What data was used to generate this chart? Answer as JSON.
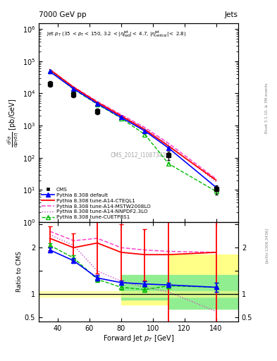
{
  "title_left": "7000 GeV pp",
  "title_right": "Jets",
  "watermark": "CMS_2012_I1087342",
  "cms_x": [
    35,
    50,
    65,
    110,
    140
  ],
  "cms_y": [
    20000.0,
    9500,
    2800,
    120,
    10.5
  ],
  "cms_yerr_lo": [
    4000,
    1800,
    600,
    35,
    3.5
  ],
  "cms_yerr_hi": [
    4000,
    1800,
    600,
    35,
    3.5
  ],
  "pythia_default_x": [
    35,
    50,
    65,
    80,
    95,
    110,
    140
  ],
  "pythia_default_y": [
    48000.0,
    14000.0,
    4800,
    1800,
    680,
    200,
    12
  ],
  "pythia_a14cteq_x": [
    35,
    50,
    65,
    80,
    95,
    110,
    140
  ],
  "pythia_a14cteq_y": [
    55000.0,
    15500.0,
    5300,
    2000,
    750,
    230,
    20
  ],
  "pythia_a14mstw_x": [
    35,
    50,
    65,
    80,
    95,
    110,
    140
  ],
  "pythia_a14mstw_y": [
    56000.0,
    16000.0,
    5600,
    2200,
    870,
    280,
    22
  ],
  "pythia_a14nnpdf_x": [
    35,
    50,
    65,
    80,
    95,
    110,
    140
  ],
  "pythia_a14nnpdf_y": [
    54000.0,
    15500.0,
    5300,
    2100,
    800,
    250,
    18
  ],
  "pythia_cuetp_x": [
    35,
    50,
    65,
    80,
    95,
    110,
    140
  ],
  "pythia_cuetp_y": [
    50000.0,
    13500.0,
    4600,
    1700,
    530,
    65,
    9
  ],
  "ratio_default_x": [
    35,
    50,
    65,
    80,
    95,
    110,
    140
  ],
  "ratio_default_y": [
    1.95,
    1.72,
    1.35,
    1.25,
    1.22,
    1.2,
    1.15
  ],
  "ratio_default_yerr_lo": [
    0.05,
    0.05,
    0.06,
    0.05,
    0.05,
    0.05,
    0.1
  ],
  "ratio_default_yerr_hi": [
    0.05,
    0.05,
    0.06,
    0.05,
    0.05,
    0.05,
    0.1
  ],
  "ratio_a14cteq_x": [
    35,
    50,
    65,
    80,
    95,
    110,
    140
  ],
  "ratio_a14cteq_y": [
    2.2,
    2.0,
    2.1,
    1.9,
    1.85,
    1.85,
    1.9
  ],
  "ratio_a14cteq_yerr_lo": [
    0.25,
    0.3,
    0.65,
    0.6,
    0.55,
    1.5,
    15.0
  ],
  "ratio_a14cteq_yerr_hi": [
    0.25,
    0.3,
    0.65,
    0.6,
    0.55,
    1.5,
    15.0
  ],
  "ratio_a14mstw_x": [
    35,
    50,
    65,
    80,
    95,
    110,
    140
  ],
  "ratio_a14mstw_y": [
    2.35,
    2.15,
    2.2,
    2.0,
    1.95,
    1.92,
    1.9
  ],
  "ratio_a14nnpdf_x": [
    35,
    50,
    65,
    80,
    95,
    110,
    140
  ],
  "ratio_a14nnpdf_y": [
    2.28,
    2.05,
    1.5,
    1.28,
    1.15,
    1.05,
    0.63
  ],
  "ratio_cuetp_x": [
    35,
    50,
    65,
    80,
    95,
    110,
    140
  ],
  "ratio_cuetp_y": [
    2.05,
    1.78,
    1.32,
    1.15,
    1.1,
    1.18,
    1.15
  ],
  "ratio_cuetp_yerr_lo": [
    0.05,
    0.05,
    0.06,
    0.05,
    0.05,
    0.05,
    0.1
  ],
  "ratio_cuetp_yerr_hi": [
    0.05,
    0.05,
    0.06,
    0.05,
    0.05,
    0.05,
    0.1
  ],
  "color_cms": "#000000",
  "color_default": "#0000ff",
  "color_a14cteq": "#ff0000",
  "color_a14mstw": "#ff44cc",
  "color_a14nnpdf": "#cc44cc",
  "color_cuetp": "#00bb00",
  "color_green_bg": "#90ee90",
  "color_yellow_bg": "#ffff88",
  "ylim_main": [
    1.0,
    1500000.0
  ],
  "ylim_ratio": [
    0.42,
    2.55
  ],
  "xlim": [
    28,
    154
  ],
  "bg_yellow_x1": 80,
  "bg_yellow_x2": 110,
  "bg_yellow_x3": 154,
  "bg_yellow_lo": 0.78,
  "bg_yellow_hi1": 1.4,
  "bg_yellow_hi2": 1.85,
  "bg_yellow_hi3": 1.85,
  "bg_green_x1": 80,
  "bg_green_x2": 110,
  "bg_green_x3": 154,
  "bg_green_lo1": 0.88,
  "bg_green_lo2": 0.68,
  "bg_green_lo3": 0.88,
  "bg_green_hi1": 1.42,
  "bg_green_hi2": 1.42,
  "bg_green_hi3": 1.42
}
